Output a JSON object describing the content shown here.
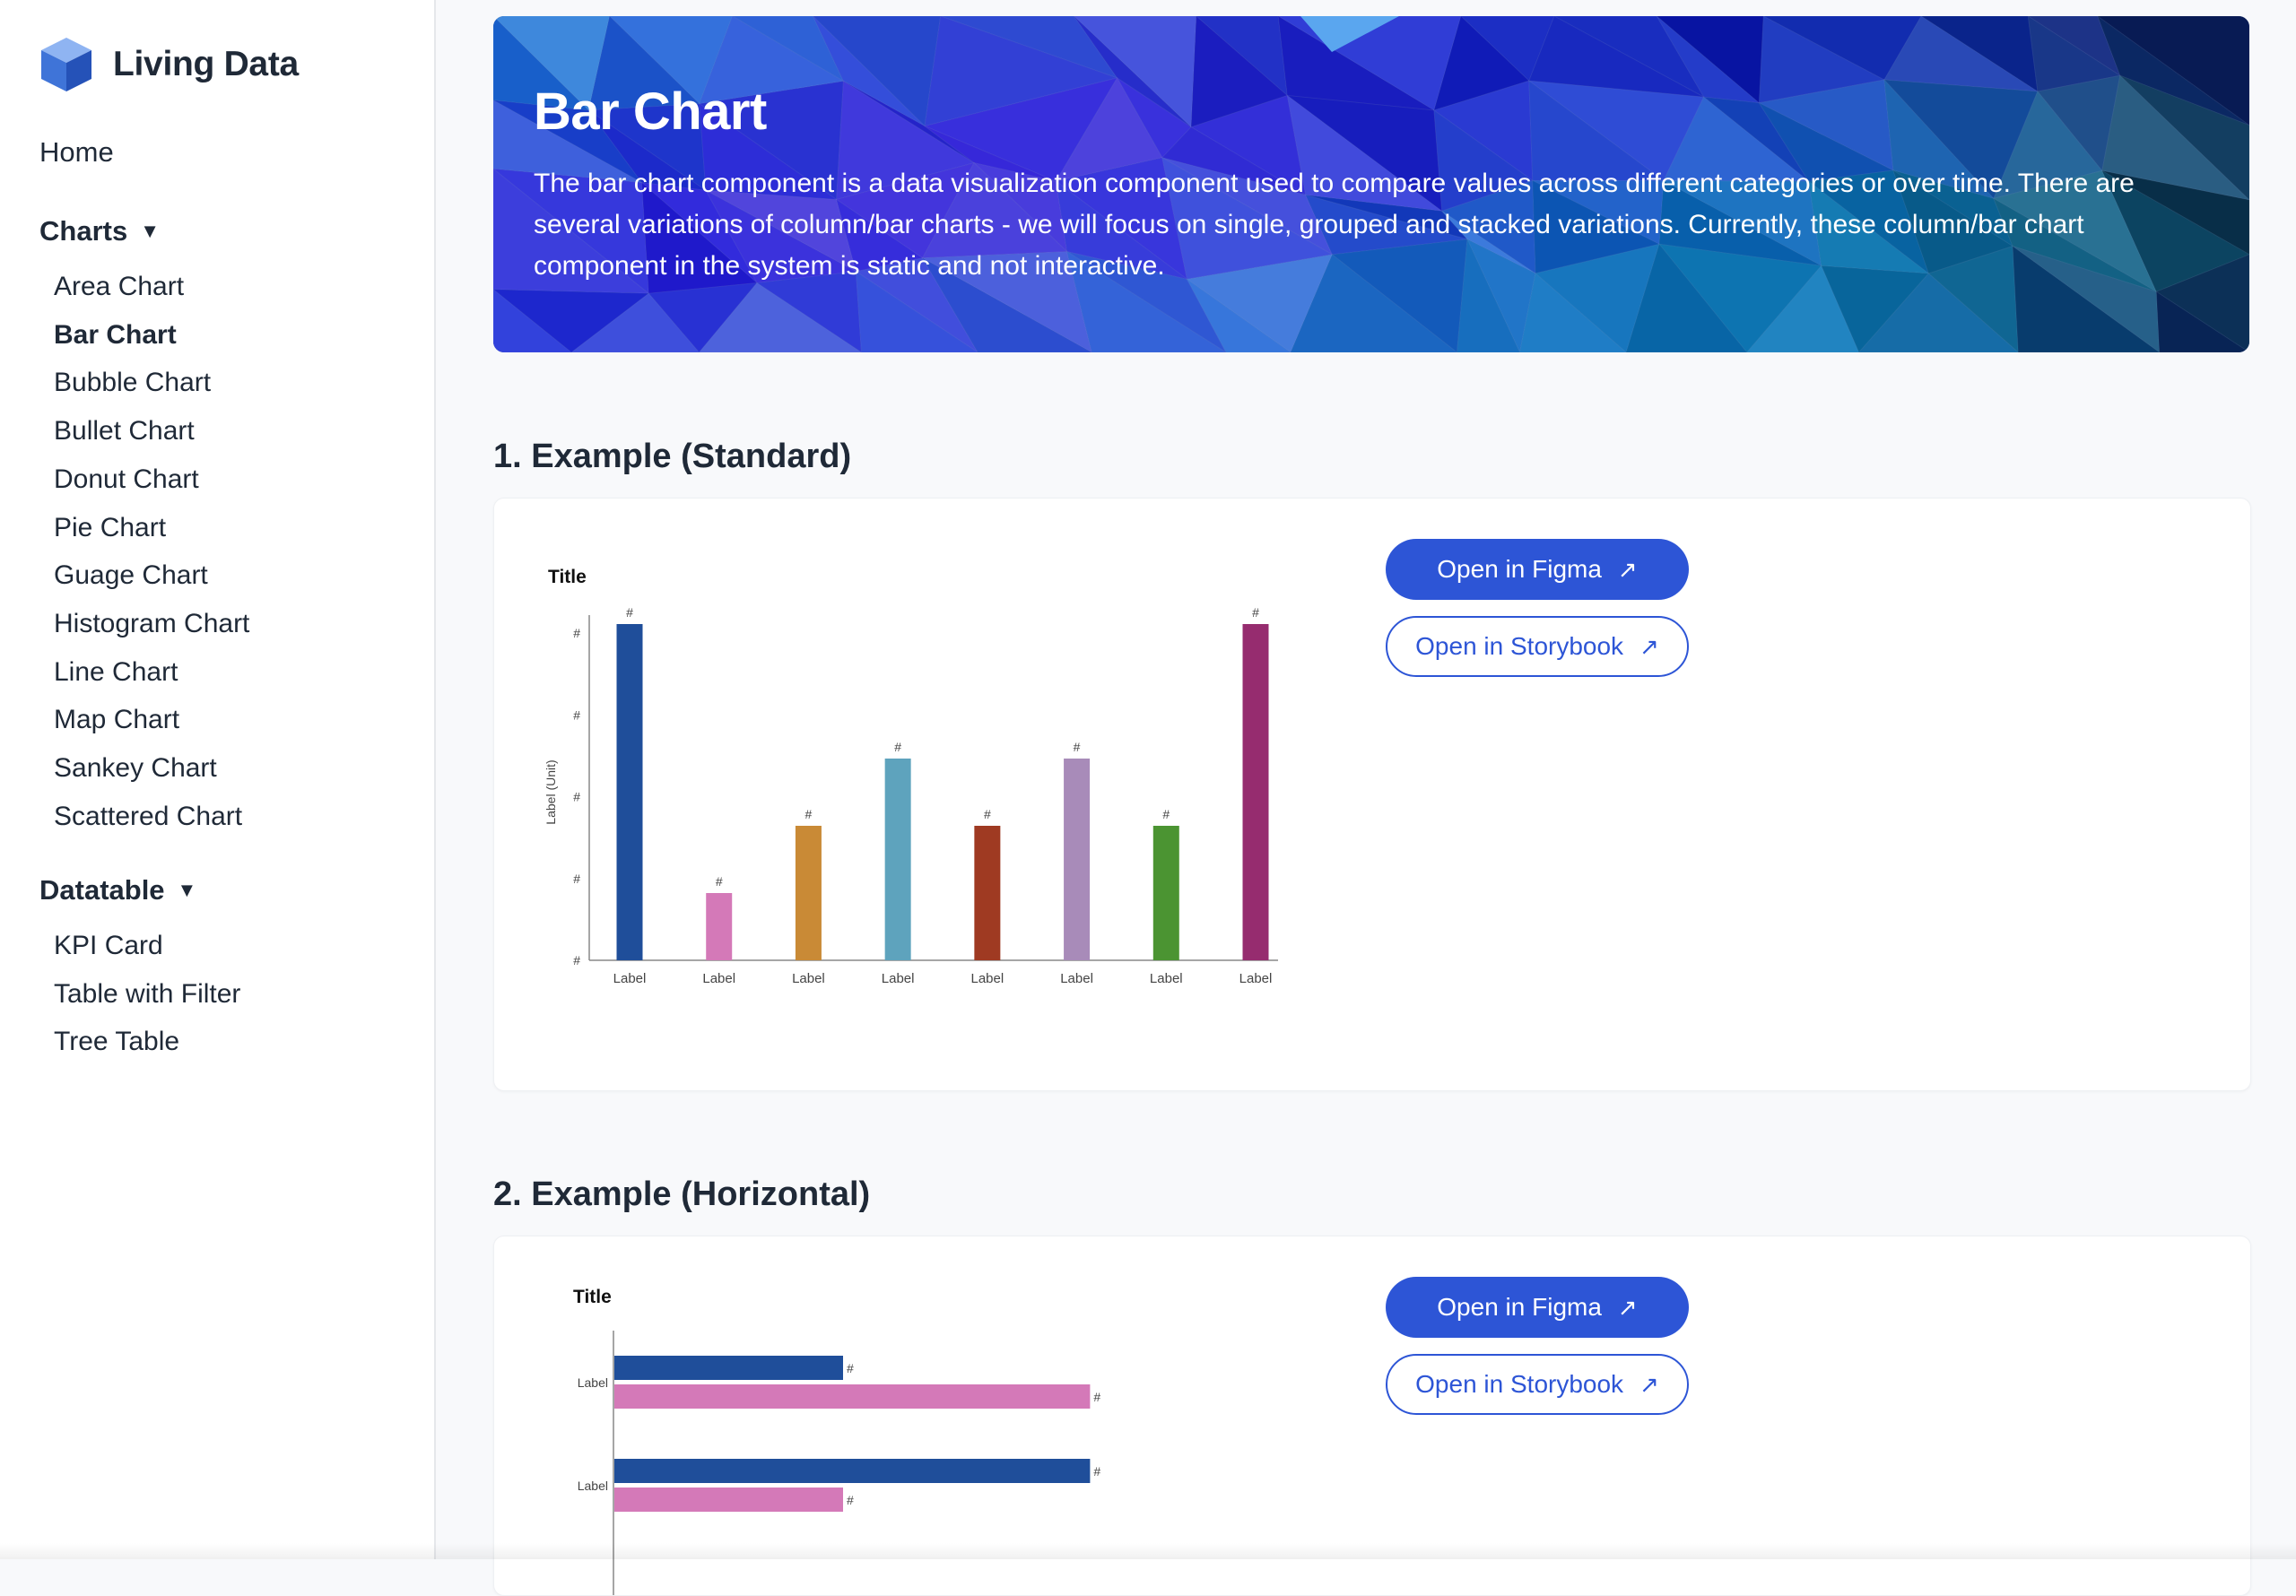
{
  "app": {
    "brand": "Living Data"
  },
  "sidebar": {
    "home": "Home",
    "charts_heading": "Charts",
    "charts_caret": "▼",
    "charts": [
      "Area Chart",
      "Bar Chart",
      "Bubble Chart",
      "Bullet Chart",
      "Donut Chart",
      "Pie Chart",
      "Guage Chart",
      "Histogram Chart",
      "Line Chart",
      "Map Chart",
      "Sankey Chart",
      "Scattered Chart"
    ],
    "active_chart": "Bar Chart",
    "datatable_heading": "Datatable",
    "datatable_caret": "▼",
    "datatable": [
      "KPI Card",
      "Table with Filter",
      "Tree Table"
    ]
  },
  "hero": {
    "title": "Bar Chart",
    "description": "The bar chart component is a data visualization component used to compare values across different categories or over time. There are several variations of column/bar charts - we will focus on single, grouped and stacked variations. Currently, these column/bar chart component in the system is static and not interactive."
  },
  "sections": [
    {
      "title": "1. Example (Standard)",
      "figma_label": "Open in Figma",
      "storybook_label": "Open in Storybook",
      "arrow": "↗"
    },
    {
      "title": "2. Example (Horizontal)",
      "figma_label": "Open in Figma",
      "storybook_label": "Open in Storybook",
      "arrow": "↗"
    }
  ],
  "colors": {
    "accent": "#2d55d6",
    "bar_palette": [
      "#1f4e9a",
      "#d479b8",
      "#c98a36",
      "#5ea3bd",
      "#9f3a22",
      "#a88bb9",
      "#4b9432",
      "#962c6f"
    ]
  },
  "chart_data": [
    {
      "type": "bar",
      "title": "Title",
      "ylabel": "Label (Unit)",
      "categories": [
        "Label",
        "Label",
        "Label",
        "Label",
        "Label",
        "Label",
        "Label",
        "Label"
      ],
      "values": [
        5,
        1,
        2,
        3,
        2,
        3,
        2,
        5
      ],
      "data_labels": [
        "#",
        "#",
        "#",
        "#",
        "#",
        "#",
        "#",
        "#"
      ],
      "ylim": [
        0,
        5
      ],
      "y_tick_labels": [
        "#",
        "#",
        "#",
        "#",
        "#"
      ],
      "grid": false
    },
    {
      "type": "bar",
      "orientation": "horizontal",
      "title": "Title",
      "categories": [
        "Label",
        "Label"
      ],
      "series": [
        {
          "values": [
            5,
            10.4
          ]
        },
        {
          "values": [
            10.4,
            5
          ]
        }
      ],
      "data_labels": [
        "#",
        "#"
      ],
      "grid": false
    }
  ]
}
